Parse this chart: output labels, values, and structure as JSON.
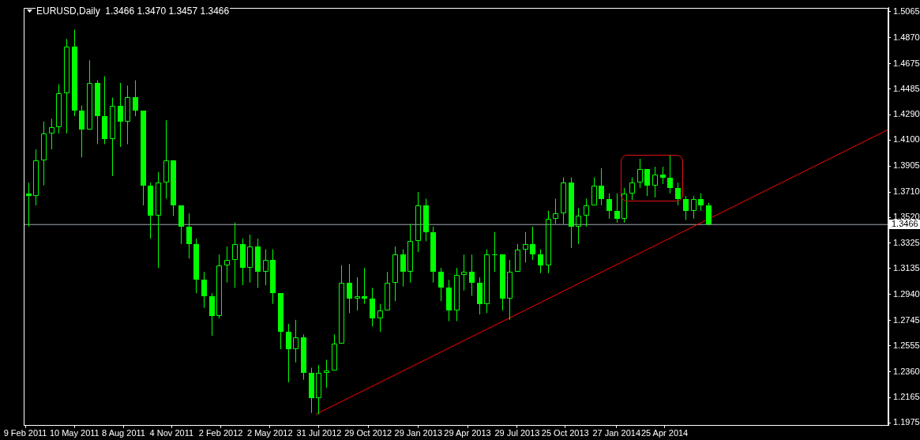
{
  "chart_data": {
    "type": "candlestick",
    "title": "EURUSD,Daily  1.3466 1.3470 1.3457 1.3466",
    "color": "#00ff00",
    "x": [
      "2011-02-14",
      "2011-02-28",
      "2011-03-14",
      "2011-03-28",
      "2011-04-11",
      "2011-04-25",
      "2011-05-09",
      "2011-05-23",
      "2011-06-06",
      "2011-06-20",
      "2011-07-04",
      "2011-07-18",
      "2011-08-01",
      "2011-08-15",
      "2011-08-29",
      "2011-09-12",
      "2011-09-26",
      "2011-10-10",
      "2011-10-24",
      "2011-11-07",
      "2011-11-21",
      "2011-12-05",
      "2011-12-19",
      "2012-01-02",
      "2012-01-16",
      "2012-01-30",
      "2012-02-13",
      "2012-02-27",
      "2012-03-12",
      "2012-03-26",
      "2012-04-09",
      "2012-04-23",
      "2012-05-07",
      "2012-05-21",
      "2012-06-04",
      "2012-06-18",
      "2012-07-02",
      "2012-07-16",
      "2012-07-30",
      "2012-08-13",
      "2012-08-27",
      "2012-09-10",
      "2012-09-24",
      "2012-10-08",
      "2012-10-22",
      "2012-11-05",
      "2012-11-19",
      "2012-12-03",
      "2012-12-17",
      "2012-12-31",
      "2013-01-14",
      "2013-01-28",
      "2013-02-11",
      "2013-02-25",
      "2013-03-11",
      "2013-03-25",
      "2013-04-08",
      "2013-04-22",
      "2013-05-06",
      "2013-05-20",
      "2013-06-03",
      "2013-06-17",
      "2013-07-01",
      "2013-07-15",
      "2013-07-29",
      "2013-08-12",
      "2013-08-26",
      "2013-09-09",
      "2013-09-23",
      "2013-10-07",
      "2013-10-21",
      "2013-11-04",
      "2013-11-18",
      "2013-12-02",
      "2013-12-16",
      "2013-12-30",
      "2014-01-13",
      "2014-01-27",
      "2014-02-10",
      "2014-02-24",
      "2014-03-10",
      "2014-03-24",
      "2014-04-07",
      "2014-04-21",
      "2014-05-05",
      "2014-05-19",
      "2014-06-02",
      "2014-06-16",
      "2014-06-30",
      "2014-07-14"
    ],
    "ohlc": [
      [
        1.37,
        1.378,
        1.345,
        1.368
      ],
      [
        1.368,
        1.403,
        1.361,
        1.395
      ],
      [
        1.395,
        1.424,
        1.376,
        1.415
      ],
      [
        1.415,
        1.426,
        1.403,
        1.42
      ],
      [
        1.42,
        1.452,
        1.415,
        1.445
      ],
      [
        1.445,
        1.486,
        1.415,
        1.48
      ],
      [
        1.48,
        1.493,
        1.428,
        1.432
      ],
      [
        1.432,
        1.436,
        1.397,
        1.418
      ],
      [
        1.418,
        1.47,
        1.418,
        1.453
      ],
      [
        1.453,
        1.455,
        1.407,
        1.428
      ],
      [
        1.428,
        1.458,
        1.407,
        1.411
      ],
      [
        1.411,
        1.442,
        1.383,
        1.436
      ],
      [
        1.436,
        1.453,
        1.405,
        1.424
      ],
      [
        1.424,
        1.451,
        1.407,
        1.442
      ],
      [
        1.442,
        1.455,
        1.428,
        1.432
      ],
      [
        1.432,
        1.432,
        1.361,
        1.376
      ],
      [
        1.376,
        1.378,
        1.336,
        1.353
      ],
      [
        1.353,
        1.386,
        1.314,
        1.378
      ],
      [
        1.378,
        1.425,
        1.366,
        1.395
      ],
      [
        1.395,
        1.395,
        1.353,
        1.361
      ],
      [
        1.361,
        1.361,
        1.332,
        1.345
      ],
      [
        1.345,
        1.355,
        1.321,
        1.332
      ],
      [
        1.332,
        1.336,
        1.295,
        1.305
      ],
      [
        1.305,
        1.311,
        1.284,
        1.293
      ],
      [
        1.293,
        1.295,
        1.263,
        1.278
      ],
      [
        1.278,
        1.324,
        1.276,
        1.316
      ],
      [
        1.316,
        1.33,
        1.303,
        1.32
      ],
      [
        1.32,
        1.348,
        1.299,
        1.332
      ],
      [
        1.332,
        1.336,
        1.301,
        1.314
      ],
      [
        1.314,
        1.339,
        1.303,
        1.33
      ],
      [
        1.33,
        1.336,
        1.299,
        1.311
      ],
      [
        1.311,
        1.328,
        1.301,
        1.32
      ],
      [
        1.32,
        1.328,
        1.287,
        1.295
      ],
      [
        1.295,
        1.295,
        1.253,
        1.266
      ],
      [
        1.266,
        1.272,
        1.228,
        1.253
      ],
      [
        1.253,
        1.275,
        1.243,
        1.262
      ],
      [
        1.262,
        1.264,
        1.23,
        1.235
      ],
      [
        1.235,
        1.239,
        1.205,
        1.216
      ],
      [
        1.216,
        1.241,
        1.204,
        1.235
      ],
      [
        1.235,
        1.245,
        1.224,
        1.237
      ],
      [
        1.237,
        1.264,
        1.237,
        1.257
      ],
      [
        1.257,
        1.316,
        1.257,
        1.303
      ],
      [
        1.303,
        1.317,
        1.28,
        1.291
      ],
      [
        1.291,
        1.307,
        1.282,
        1.293
      ],
      [
        1.293,
        1.314,
        1.287,
        1.291
      ],
      [
        1.291,
        1.299,
        1.27,
        1.276
      ],
      [
        1.276,
        1.287,
        1.266,
        1.282
      ],
      [
        1.282,
        1.311,
        1.282,
        1.303
      ],
      [
        1.303,
        1.33,
        1.289,
        1.324
      ],
      [
        1.324,
        1.328,
        1.3,
        1.311
      ],
      [
        1.311,
        1.347,
        1.303,
        1.334
      ],
      [
        1.334,
        1.371,
        1.326,
        1.361
      ],
      [
        1.361,
        1.366,
        1.334,
        1.341
      ],
      [
        1.341,
        1.345,
        1.303,
        1.311
      ],
      [
        1.311,
        1.314,
        1.289,
        1.299
      ],
      [
        1.299,
        1.305,
        1.274,
        1.282
      ],
      [
        1.282,
        1.314,
        1.274,
        1.309
      ],
      [
        1.309,
        1.324,
        1.297,
        1.311
      ],
      [
        1.311,
        1.324,
        1.293,
        1.303
      ],
      [
        1.303,
        1.307,
        1.279,
        1.287
      ],
      [
        1.287,
        1.328,
        1.28,
        1.324
      ],
      [
        1.324,
        1.341,
        1.311,
        1.324
      ],
      [
        1.324,
        1.324,
        1.282,
        1.291
      ],
      [
        1.291,
        1.32,
        1.275,
        1.311
      ],
      [
        1.311,
        1.332,
        1.311,
        1.328
      ],
      [
        1.328,
        1.341,
        1.318,
        1.332
      ],
      [
        1.332,
        1.345,
        1.32,
        1.324
      ],
      [
        1.324,
        1.328,
        1.31,
        1.316
      ],
      [
        1.316,
        1.357,
        1.31,
        1.351
      ],
      [
        1.351,
        1.366,
        1.347,
        1.355
      ],
      [
        1.355,
        1.382,
        1.347,
        1.378
      ],
      [
        1.378,
        1.382,
        1.329,
        1.345
      ],
      [
        1.345,
        1.359,
        1.332,
        1.353
      ],
      [
        1.353,
        1.366,
        1.345,
        1.361
      ],
      [
        1.361,
        1.382,
        1.361,
        1.376
      ],
      [
        1.376,
        1.389,
        1.361,
        1.366
      ],
      [
        1.366,
        1.37,
        1.351,
        1.357
      ],
      [
        1.357,
        1.37,
        1.348,
        1.351
      ],
      [
        1.351,
        1.374,
        1.348,
        1.37
      ],
      [
        1.37,
        1.382,
        1.365,
        1.378
      ],
      [
        1.378,
        1.396,
        1.374,
        1.388
      ],
      [
        1.388,
        1.388,
        1.368,
        1.376
      ],
      [
        1.376,
        1.39,
        1.367,
        1.384
      ],
      [
        1.384,
        1.39,
        1.377,
        1.382
      ],
      [
        1.382,
        1.399,
        1.37,
        1.374
      ],
      [
        1.374,
        1.378,
        1.361,
        1.366
      ],
      [
        1.366,
        1.368,
        1.35,
        1.357
      ],
      [
        1.357,
        1.368,
        1.351,
        1.366
      ],
      [
        1.366,
        1.37,
        1.357,
        1.361
      ],
      [
        1.361,
        1.363,
        1.346,
        1.3466
      ]
    ],
    "series": [
      {
        "type": "line",
        "color": "#ff0000",
        "x": [
          "2012-07-25",
          "2015-06-09"
        ],
        "values": [
          1.204,
          1.418
        ]
      }
    ],
    "ref_lines": [
      {
        "axis": "y",
        "value": 1.3466,
        "label": "1.3466",
        "color": "#a0aab4"
      }
    ],
    "xlim": [
      "2011-02-06",
      "2015-06-09"
    ],
    "xticks": [
      {
        "value": "2011-02-09",
        "label": "9 Feb 2011"
      },
      {
        "value": "2011-05-10",
        "label": "10 May 2011"
      },
      {
        "value": "2011-08-08",
        "label": "8 Aug 2011"
      },
      {
        "value": "2011-11-04",
        "label": "4 Nov 2011"
      },
      {
        "value": "2012-02-02",
        "label": "2 Feb 2012"
      },
      {
        "value": "2012-05-02",
        "label": "2 May 2012"
      },
      {
        "value": "2012-07-31",
        "label": "31 Jul 2012"
      },
      {
        "value": "2012-10-29",
        "label": "29 Oct 2012"
      },
      {
        "value": "2013-01-29",
        "label": "29 Jan 2013"
      },
      {
        "value": "2013-04-29",
        "label": "29 Apr 2013"
      },
      {
        "value": "2013-07-29",
        "label": "29 Jul 2013"
      },
      {
        "value": "2013-10-25",
        "label": "25 Oct 2013"
      },
      {
        "value": "2014-01-27",
        "label": "27 Jan 2014"
      },
      {
        "value": "2014-04-25",
        "label": "25 Apr 2014"
      }
    ],
    "ylim": [
      1.1955,
      1.5096
    ],
    "yticks": [
      {
        "value": 1.5065,
        "label": "1.5065"
      },
      {
        "value": 1.487,
        "label": "1.4870"
      },
      {
        "value": 1.4675,
        "label": "1.4675"
      },
      {
        "value": 1.4485,
        "label": "1.4485"
      },
      {
        "value": 1.429,
        "label": "1.4290"
      },
      {
        "value": 1.41,
        "label": "1.4100"
      },
      {
        "value": 1.3905,
        "label": "1.3905"
      },
      {
        "value": 1.371,
        "label": "1.3710"
      },
      {
        "value": 1.352,
        "label": "1.3520"
      },
      {
        "value": 1.3325,
        "label": "1.3325"
      },
      {
        "value": 1.3135,
        "label": "1.3135"
      },
      {
        "value": 1.294,
        "label": "1.2940"
      },
      {
        "value": 1.2745,
        "label": "1.2745"
      },
      {
        "value": 1.2555,
        "label": "1.2555"
      },
      {
        "value": 1.236,
        "label": "1.2360"
      },
      {
        "value": 1.2165,
        "label": "1.2165"
      },
      {
        "value": 1.1975,
        "label": "1.1975"
      }
    ]
  }
}
